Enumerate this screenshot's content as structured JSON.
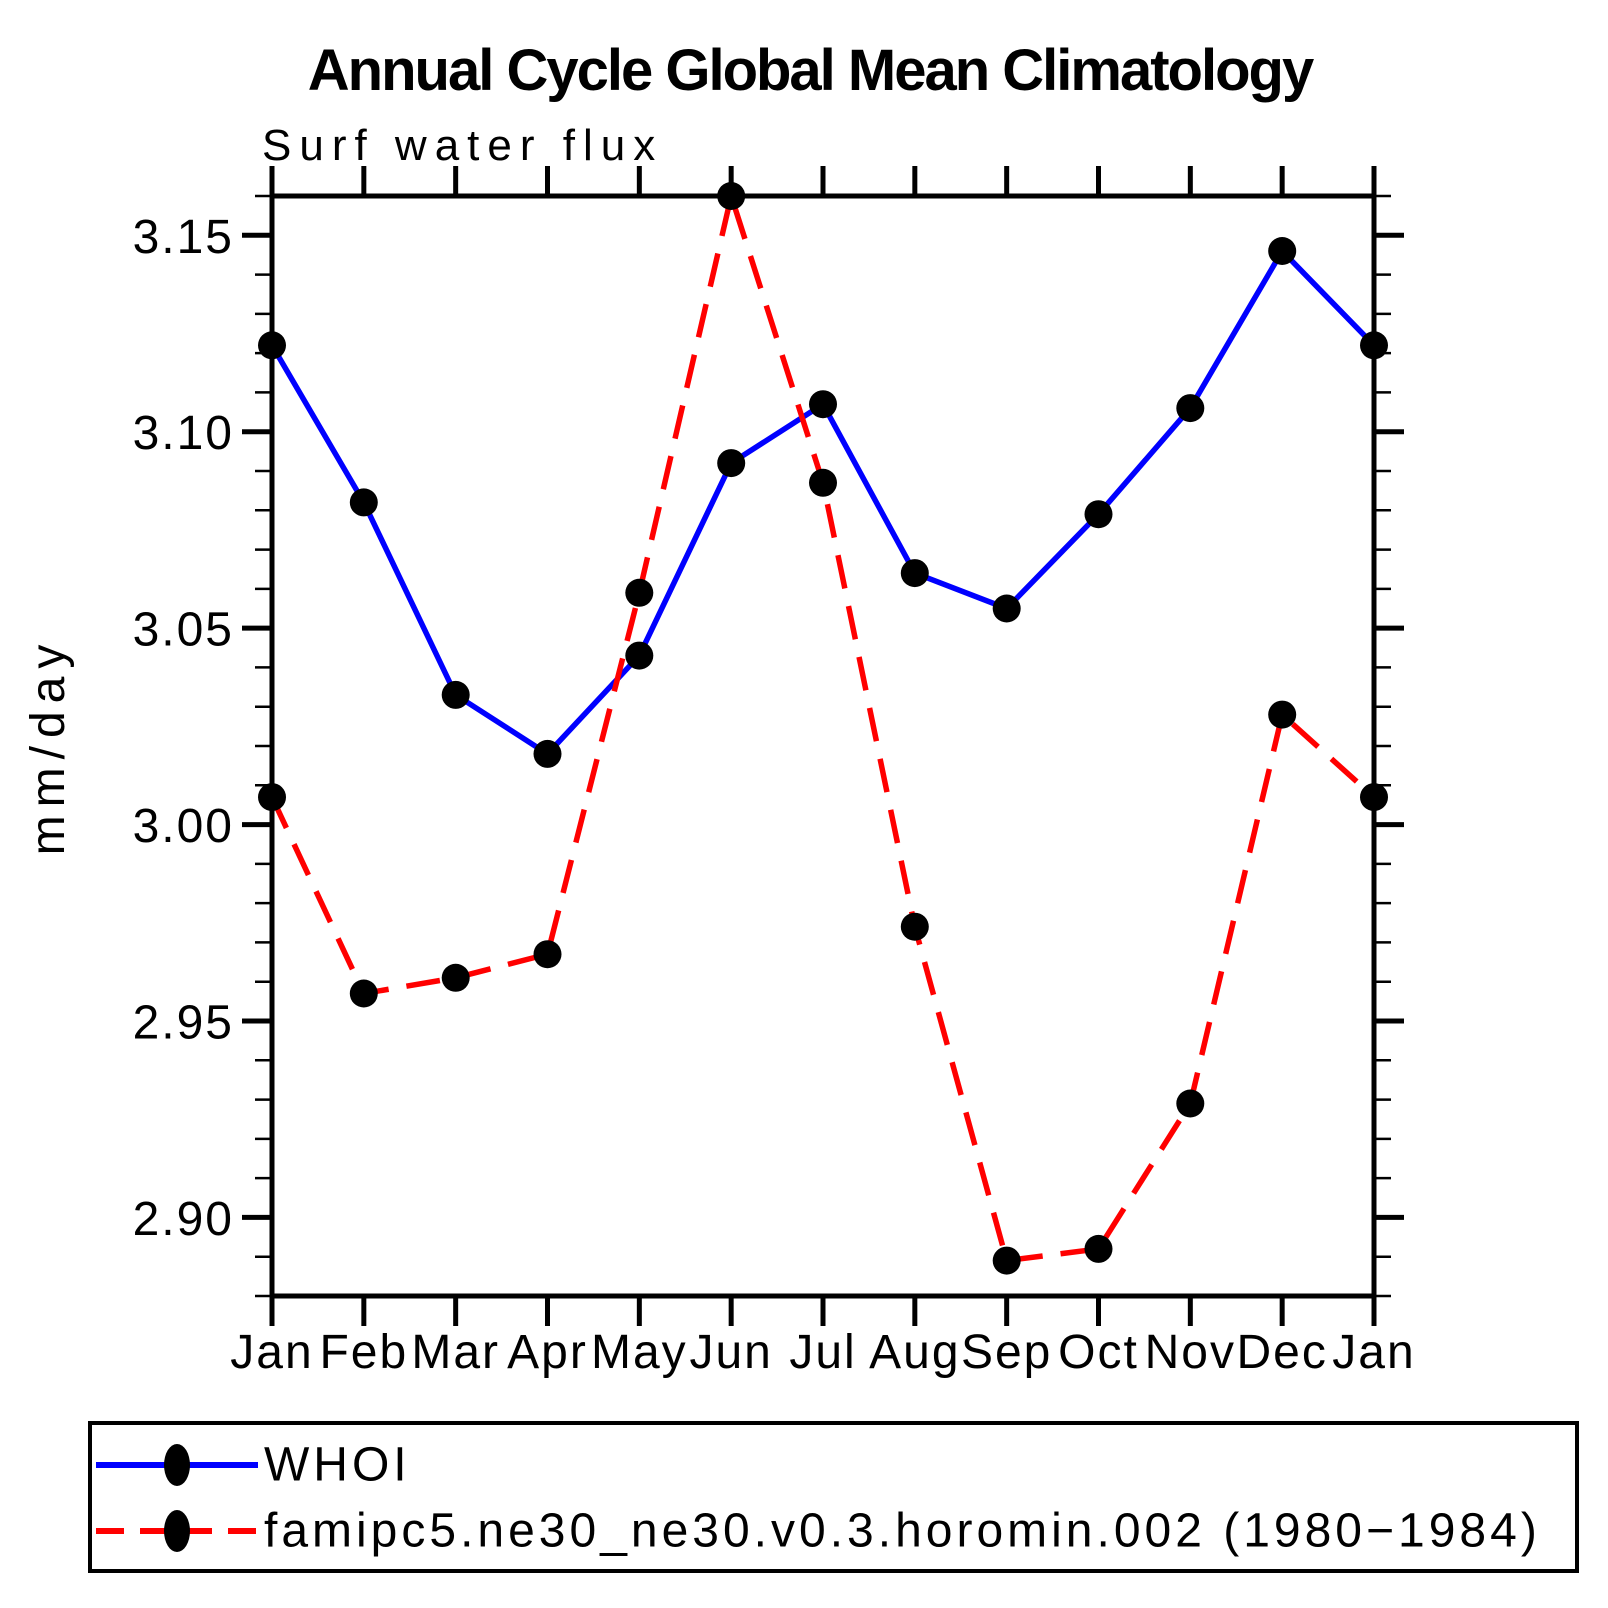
{
  "page": {
    "title": "Annual Cycle Global Mean Climatology",
    "subtitle": "Surf water flux"
  },
  "chart_data": {
    "type": "line",
    "title": "Annual Cycle Global Mean Climatology",
    "subtitle": "Surf water flux",
    "ylabel": "mm/day",
    "categories": [
      "Jan",
      "Feb",
      "Mar",
      "Apr",
      "May",
      "Jun",
      "Jul",
      "Aug",
      "Sep",
      "Oct",
      "Nov",
      "Dec",
      "Jan"
    ],
    "ylim": [
      2.88,
      3.16
    ],
    "ytick_major_step": 0.05,
    "ytick_minor_step": 0.01,
    "ytick_label_min": 2.9,
    "ytick_label_max": 3.15,
    "grid": false,
    "legend_position": "bottom",
    "marker": "filled-circle",
    "marker_color": "#000000",
    "series": [
      {
        "name": "WHOI",
        "color": "#0000ff",
        "line_style": "solid",
        "values": [
          3.122,
          3.082,
          3.033,
          3.018,
          3.043,
          3.092,
          3.107,
          3.064,
          3.055,
          3.079,
          3.106,
          3.146,
          3.122
        ]
      },
      {
        "name": "famipc5.ne30_ne30.v0.3.horomin.002 (1980−1984)",
        "color": "#ff0000",
        "line_style": "dashed",
        "values": [
          3.007,
          2.957,
          2.961,
          2.967,
          3.059,
          3.16,
          3.087,
          2.974,
          2.889,
          2.892,
          2.929,
          3.028,
          3.007
        ]
      }
    ]
  }
}
